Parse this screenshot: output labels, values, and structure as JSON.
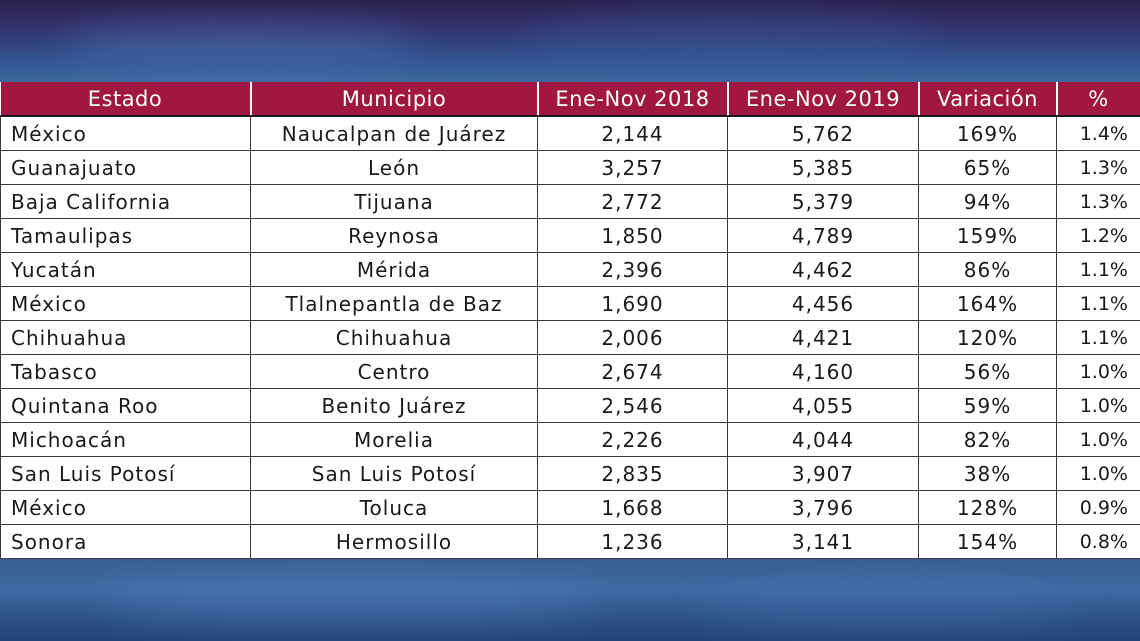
{
  "table": {
    "headers": [
      "Estado",
      "Municipio",
      "Ene-Nov  2018",
      "Ene-Nov  2019",
      "Variación",
      "%"
    ],
    "rows": [
      [
        "México",
        "Naucalpan  de  Juárez",
        "2,144",
        "5,762",
        "169%",
        "1.4%"
      ],
      [
        "Guanajuato",
        "León",
        "3,257",
        "5,385",
        "65%",
        "1.3%"
      ],
      [
        "Baja  California",
        "Tijuana",
        "2,772",
        "5,379",
        "94%",
        "1.3%"
      ],
      [
        "Tamaulipas",
        "Reynosa",
        "1,850",
        "4,789",
        "159%",
        "1.2%"
      ],
      [
        "Yucatán",
        "Mérida",
        "2,396",
        "4,462",
        "86%",
        "1.1%"
      ],
      [
        "México",
        "Tlalnepantla  de  Baz",
        "1,690",
        "4,456",
        "164%",
        "1.1%"
      ],
      [
        "Chihuahua",
        "Chihuahua",
        "2,006",
        "4,421",
        "120%",
        "1.1%"
      ],
      [
        "Tabasco",
        "Centro",
        "2,674",
        "4,160",
        "56%",
        "1.0%"
      ],
      [
        "Quintana  Roo",
        "Benito  Juárez",
        "2,546",
        "4,055",
        "59%",
        "1.0%"
      ],
      [
        "Michoacán",
        "Morelia",
        "2,226",
        "4,044",
        "82%",
        "1.0%"
      ],
      [
        "San  Luis  Potosí",
        "San  Luis  Potosí",
        "2,835",
        "3,907",
        "38%",
        "1.0%"
      ],
      [
        "México",
        "Toluca",
        "1,668",
        "3,796",
        "128%",
        "0.9%"
      ],
      [
        "Sonora",
        "Hermosillo",
        "1,236",
        "3,141",
        "154%",
        "0.8%"
      ]
    ]
  },
  "colors": {
    "header_bg": "#a0183f",
    "header_text": "#ffffff",
    "border": "#3a3a3a"
  }
}
